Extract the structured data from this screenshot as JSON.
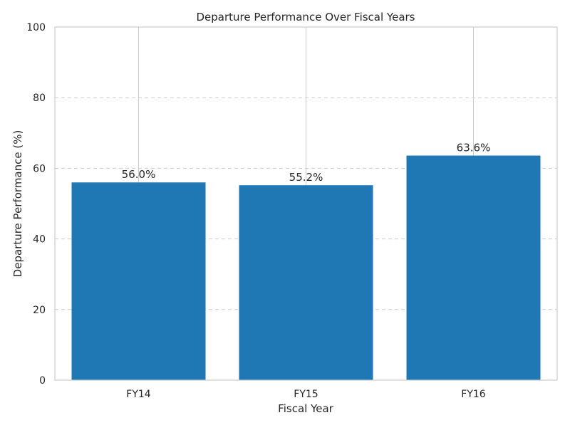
{
  "chart_data": {
    "type": "bar",
    "title": "Departure Performance Over Fiscal Years",
    "xlabel": "Fiscal Year",
    "ylabel": "Departure Performance (%)",
    "categories": [
      "FY14",
      "FY15",
      "FY16"
    ],
    "values": [
      56.0,
      55.2,
      63.6
    ],
    "data_labels": [
      "56.0%",
      "55.2%",
      "63.6%"
    ],
    "ylim": [
      0,
      100
    ],
    "yticks": [
      0,
      20,
      40,
      60,
      80,
      100
    ],
    "grid": {
      "horizontal": "dashed",
      "vertical": "solid"
    },
    "bar_color": "#1f77b4",
    "grid_color": "#cccccc",
    "axes_edge_color": "#cccccc"
  }
}
